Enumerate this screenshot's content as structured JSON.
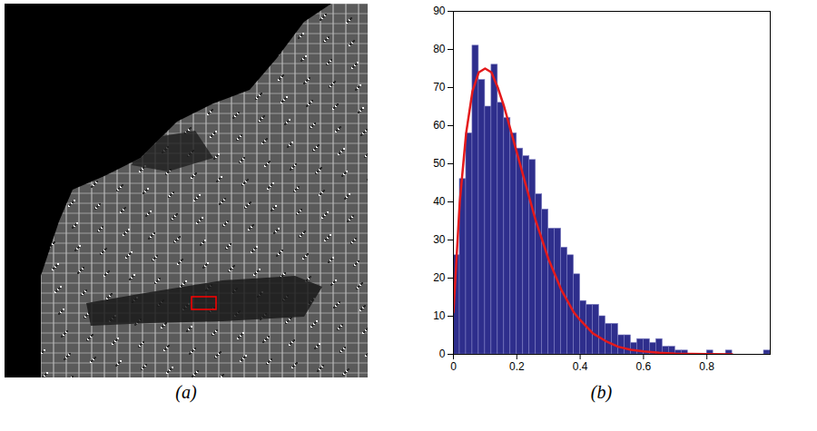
{
  "chart_data": [
    {
      "type": "image",
      "caption": "(a)",
      "color": "#ff0000"
    },
    {
      "type": "histogram",
      "caption": "(b)",
      "color": "#2e2e8c",
      "bins": [
        0,
        0.02,
        0.04,
        0.06,
        0.08,
        0.1,
        0.12,
        0.14,
        0.16,
        0.18,
        0.2,
        0.22,
        0.24,
        0.26,
        0.28,
        0.3,
        0.32,
        0.34,
        0.36,
        0.38,
        0.4,
        0.42,
        0.44,
        0.46,
        0.48,
        0.5,
        0.52,
        0.54,
        0.56,
        0.58,
        0.6,
        0.62,
        0.64,
        0.66,
        0.68,
        0.7,
        0.72,
        0.74,
        0.76,
        0.78,
        0.8,
        0.82,
        0.84,
        0.86,
        0.88,
        0.9,
        0.92,
        0.94,
        0.96,
        0.98,
        1
      ],
      "values": [
        26,
        46,
        58,
        81,
        72,
        65,
        76,
        66,
        62,
        58,
        54,
        52,
        51,
        42,
        38,
        33,
        33,
        28,
        26,
        21,
        14,
        13,
        13,
        10,
        8,
        8,
        5,
        5,
        3,
        4,
        4,
        3,
        4,
        2,
        2,
        1,
        1,
        0,
        0,
        0,
        1,
        0,
        0,
        1,
        0,
        0,
        0,
        0,
        0,
        1
      ],
      "curve": {
        "type": "line",
        "color": "#e41a1c",
        "x": [
          0,
          0.02,
          0.04,
          0.06,
          0.08,
          0.1,
          0.12,
          0.14,
          0.16,
          0.18,
          0.2,
          0.22,
          0.24,
          0.26,
          0.28,
          0.3,
          0.32,
          0.34,
          0.36,
          0.38,
          0.4,
          0.44,
          0.48,
          0.52,
          0.56,
          0.6,
          0.65,
          0.7,
          0.8,
          0.88
        ],
        "values": [
          11,
          40,
          58,
          69,
          74,
          75,
          74,
          70,
          65,
          59,
          53,
          47,
          41,
          35,
          30,
          25,
          21,
          17,
          14,
          11,
          9,
          5.5,
          3.5,
          2,
          1.2,
          0.8,
          0.4,
          0.2,
          0.05,
          0
        ]
      },
      "xlim": [
        0,
        1
      ],
      "xticks": [
        0,
        0.2,
        0.4,
        0.6,
        0.8
      ],
      "ylim": [
        0,
        90
      ],
      "yticks": [
        0,
        10,
        20,
        30,
        40,
        50,
        60,
        70,
        80,
        90
      ],
      "grid": false
    }
  ]
}
